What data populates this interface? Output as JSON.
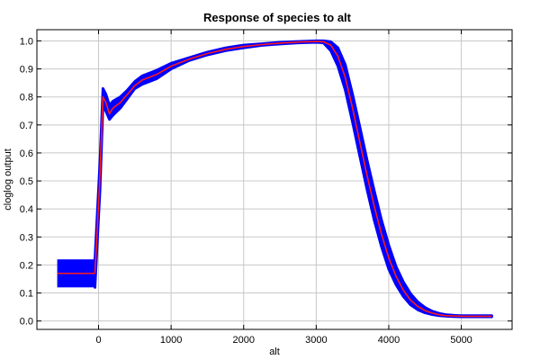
{
  "chart_data": {
    "type": "line",
    "title": "Response of species to alt",
    "xlabel": "alt",
    "ylabel": "cloglog output",
    "xlim": [
      -850,
      5700
    ],
    "ylim": [
      -0.03,
      1.04
    ],
    "xticks": [
      0,
      1000,
      2000,
      3000,
      4000,
      5000
    ],
    "yticks": [
      0.0,
      0.1,
      0.2,
      0.3,
      0.4,
      0.5,
      0.6,
      0.7,
      0.8,
      0.9,
      1.0
    ],
    "grid": true,
    "colors": {
      "mean_line": "#ff1a1a",
      "band": "#0000ff",
      "grid": "#c8c8c8",
      "frame": "#000000"
    },
    "categorical_box": {
      "x_range": [
        -570,
        -50
      ],
      "y_low": 0.12,
      "y_high": 0.22,
      "mean": 0.17
    },
    "series": [
      {
        "x": [
          -50,
          20,
          60,
          100,
          150,
          200,
          300,
          400,
          500,
          600,
          800,
          1000,
          1250,
          1500,
          1750,
          2000,
          2250,
          2500,
          2750,
          3000,
          3100,
          3200,
          3300,
          3400,
          3500,
          3600,
          3700,
          3800,
          3900,
          4000,
          4100,
          4200,
          4300,
          4400,
          4500,
          4600,
          4700,
          4800,
          4900,
          5000,
          5100,
          5200,
          5300,
          5420
        ],
        "values": [
          0.17,
          0.52,
          0.8,
          0.78,
          0.74,
          0.76,
          0.78,
          0.81,
          0.84,
          0.86,
          0.88,
          0.91,
          0.935,
          0.955,
          0.97,
          0.98,
          0.987,
          0.992,
          0.996,
          0.998,
          0.997,
          0.985,
          0.945,
          0.87,
          0.76,
          0.64,
          0.52,
          0.41,
          0.31,
          0.225,
          0.16,
          0.11,
          0.075,
          0.052,
          0.037,
          0.028,
          0.022,
          0.019,
          0.018,
          0.017,
          0.017,
          0.017,
          0.017,
          0.017
        ],
        "upper": [
          0.22,
          0.57,
          0.83,
          0.81,
          0.77,
          0.785,
          0.8,
          0.825,
          0.855,
          0.875,
          0.895,
          0.92,
          0.94,
          0.96,
          0.975,
          0.985,
          0.99,
          0.995,
          0.998,
          1.0,
          1.0,
          0.997,
          0.975,
          0.915,
          0.81,
          0.695,
          0.575,
          0.465,
          0.36,
          0.27,
          0.195,
          0.14,
          0.098,
          0.068,
          0.048,
          0.035,
          0.027,
          0.022,
          0.02,
          0.019,
          0.019,
          0.019,
          0.019,
          0.019
        ],
        "lower": [
          0.12,
          0.47,
          0.77,
          0.75,
          0.72,
          0.735,
          0.76,
          0.795,
          0.83,
          0.845,
          0.865,
          0.9,
          0.93,
          0.95,
          0.965,
          0.975,
          0.984,
          0.989,
          0.993,
          0.995,
          0.993,
          0.965,
          0.91,
          0.825,
          0.71,
          0.59,
          0.47,
          0.36,
          0.265,
          0.185,
          0.13,
          0.088,
          0.058,
          0.04,
          0.029,
          0.023,
          0.019,
          0.017,
          0.016,
          0.015,
          0.015,
          0.015,
          0.015,
          0.015
        ]
      }
    ]
  }
}
